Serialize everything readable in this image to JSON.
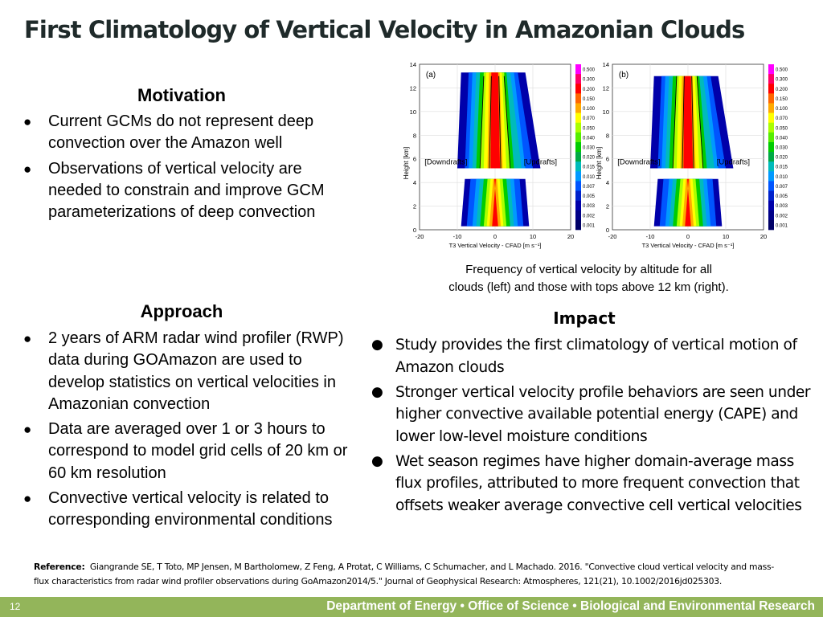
{
  "title": "First Climatology of Vertical Velocity in Amazonian Clouds",
  "motivation": {
    "heading": "Motivation",
    "bullets": [
      "Current GCMs do not represent deep convection over the Amazon well",
      "Observations of vertical velocity are needed to constrain and improve GCM parameterizations of deep convection"
    ]
  },
  "approach": {
    "heading": "Approach",
    "bullets": [
      "2 years of ARM radar wind profiler (RWP) data during GOAmazon are used to develop statistics on vertical velocities in Amazonian convection",
      "Data are averaged over 1 or 3 hours to correspond to model grid cells of 20 km or 60 km resolution",
      "Convective vertical velocity is related to corresponding environmental conditions"
    ]
  },
  "impact": {
    "heading": "Impact",
    "bullets": [
      "Study provides the first climatology of vertical motion of Amazon clouds",
      "Stronger vertical velocity profile behaviors are seen under higher convective available potential energy (CAPE) and lower low-level moisture conditions",
      "Wet season regimes have higher domain-average mass flux profiles, attributed to more frequent convection that offsets weaker average convective cell vertical velocities"
    ]
  },
  "bullet_char": "●",
  "figure": {
    "caption_line1": "Frequency of vertical velocity by altitude for all",
    "caption_line2": "clouds (left) and those with tops above 12 km (right).",
    "ylabel": "Height [km]",
    "xlabel": "T3 Vertical Velocity - CFAD [m s⁻¹]",
    "downdrafts_label": "[Downdrafts]",
    "updrafts_label": "[Updrafts]",
    "panels": [
      {
        "label": "(a)"
      },
      {
        "label": "(b)"
      }
    ],
    "y_ticks": [
      "0",
      "2",
      "4",
      "6",
      "8",
      "10",
      "12",
      "14"
    ],
    "x_ticks": [
      "-20",
      "-10",
      "0",
      "10",
      "20"
    ],
    "colorbar_ticks": [
      "0.500",
      "0.300",
      "0.200",
      "0.150",
      "0.100",
      "0.070",
      "0.050",
      "0.040",
      "0.030",
      "0.020",
      "0.015",
      "0.010",
      "0.007",
      "0.005",
      "0.003",
      "0.002",
      "0.001"
    ],
    "colorbar_colors": [
      "#ff00ff",
      "#ff0066",
      "#ff0000",
      "#ff6600",
      "#ffaa00",
      "#ffff00",
      "#aaff00",
      "#55ee00",
      "#00cc00",
      "#00aa44",
      "#00bbbb",
      "#0099ff",
      "#0055ff",
      "#0022cc",
      "#0000aa",
      "#000088",
      "#000066"
    ],
    "chart_data": {
      "type": "heatmap",
      "description": "Two CFAD panels of vertical velocity frequency by height",
      "xlabel": "T3 Vertical Velocity - CFAD [m s⁻¹]",
      "ylabel": "Height [km]",
      "xlim": [
        -20,
        20
      ],
      "ylim": [
        0,
        14
      ],
      "colorbar_range": [
        0.001,
        0.5
      ]
    }
  },
  "reference": {
    "label": "Reference:",
    "text": "Giangrande SE, T Toto, MP Jensen, M Bartholomew, Z Feng, A Protat, C Williams, C Schumacher, and L Machado. 2016. \"Convective cloud vertical velocity and mass-flux characteristics from radar wind profiler observations during GoAmazon2014/5.\" Journal of Geophysical Research: Atmospheres, 121(21), 10.1002/2016jd025303."
  },
  "footer": {
    "slide_number": "12",
    "text": "Department of Energy  •  Office of Science  •  Biological and Environmental Research"
  }
}
